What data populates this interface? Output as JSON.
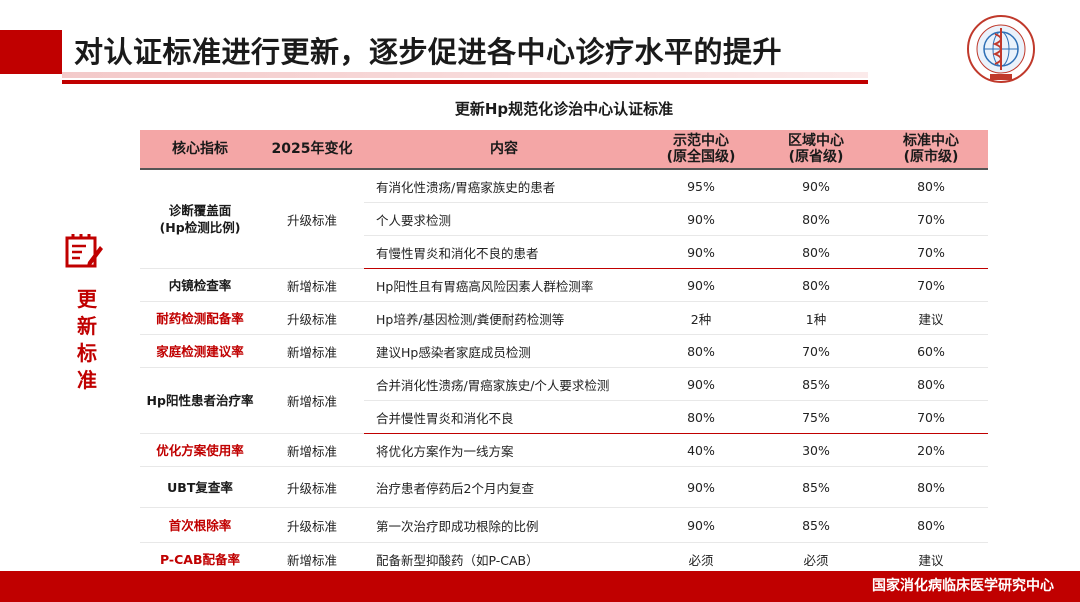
{
  "slide": {
    "title": "对认证标准进行更新，逐步促进各中心诊疗水平的提升",
    "table_title": "更新Hp规范化诊治中心认证标准",
    "side_label": "更新标准",
    "footer": "国家消化病临床医学研究中心"
  },
  "colors": {
    "accent": "#c00000",
    "header_bg": "#f4a6a6"
  },
  "icons": {
    "side": "document-pen-icon",
    "logo": "research-center-seal-icon"
  },
  "table": {
    "headers": {
      "metric": "核心指标",
      "change": "2025年变化",
      "content": "内容",
      "demo_line1": "示范中心",
      "demo_line2": "(原全国级)",
      "regional_line1": "区域中心",
      "regional_line2": "(原省级)",
      "standard_line1": "标准中心",
      "standard_line2": "(原市级)"
    },
    "rows": [
      {
        "metric_line1": "诊断覆盖面",
        "metric_line2": "(Hp检测比例)",
        "change": "升级标准",
        "content": "有消化性溃疡/胃癌家族史的患者",
        "demo": "95%",
        "regional": "90%",
        "standard": "80%"
      },
      {
        "content": "个人要求检测",
        "demo": "90%",
        "regional": "80%",
        "standard": "70%"
      },
      {
        "content": "有慢性胃炎和消化不良的患者",
        "demo": "90%",
        "regional": "80%",
        "standard": "70%"
      },
      {
        "metric": "内镜检查率",
        "change": "新增标准",
        "content": "Hp阳性且有胃癌高风险因素人群检测率",
        "demo": "90%",
        "regional": "80%",
        "standard": "70%"
      },
      {
        "metric": "耐药检测配备率",
        "change": "升级标准",
        "content": "Hp培养/基因检测/粪便耐药检测等",
        "demo": "2种",
        "regional": "1种",
        "standard": "建议"
      },
      {
        "metric": "家庭检测建议率",
        "change": "新增标准",
        "content": "建议Hp感染者家庭成员检测",
        "demo": "80%",
        "regional": "70%",
        "standard": "60%"
      },
      {
        "metric": "Hp阳性患者治疗率",
        "change": "新增标准",
        "content": "合并消化性溃疡/胃癌家族史/个人要求检测",
        "demo": "90%",
        "regional": "85%",
        "standard": "80%"
      },
      {
        "content": "合并慢性胃炎和消化不良",
        "demo": "80%",
        "regional": "75%",
        "standard": "70%"
      },
      {
        "metric": "优化方案使用率",
        "change": "新增标准",
        "content": "将优化方案作为一线方案",
        "demo": "40%",
        "regional": "30%",
        "standard": "20%"
      },
      {
        "metric": "UBT复查率",
        "change": "升级标准",
        "content": "治疗患者停药后2个月内复查",
        "demo": "90%",
        "regional": "85%",
        "standard": "80%"
      },
      {
        "metric": "首次根除率",
        "change": "升级标准",
        "content": "第一次治疗即成功根除的比例",
        "demo": "90%",
        "regional": "85%",
        "standard": "80%"
      },
      {
        "metric": "P-CAB配备率",
        "change": "新增标准",
        "content": "配备新型抑酸药（如P-CAB）",
        "demo": "必须",
        "regional": "必须",
        "standard": "建议"
      }
    ]
  }
}
